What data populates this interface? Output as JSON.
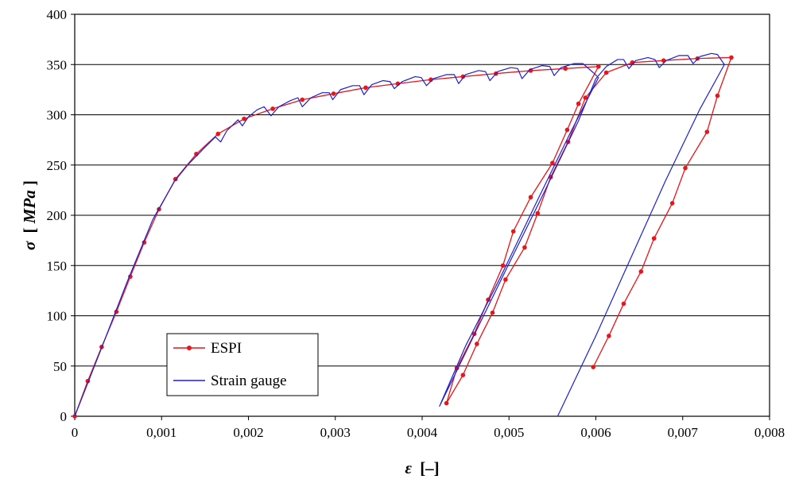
{
  "chart_data": {
    "type": "line",
    "xlabel_symbol": "ε",
    "xlabel_unit": "[–]",
    "ylabel_symbol": "σ",
    "ylabel_unit_open": "[",
    "ylabel_unit": "MPa",
    "ylabel_unit_close": "]",
    "xlim": [
      0,
      0.008
    ],
    "ylim": [
      0,
      400
    ],
    "x_ticks": [
      0,
      0.001,
      0.002,
      0.003,
      0.004,
      0.005,
      0.006,
      0.007,
      0.008
    ],
    "x_tick_labels": [
      "0",
      "0,001",
      "0,002",
      "0,003",
      "0,004",
      "0,005",
      "0,006",
      "0,007",
      "0,008"
    ],
    "y_ticks": [
      0,
      50,
      100,
      150,
      200,
      250,
      300,
      350,
      400
    ],
    "y_tick_labels": [
      "0",
      "50",
      "100",
      "150",
      "200",
      "250",
      "300",
      "350",
      "400"
    ],
    "grid": "horizontal",
    "legend_placement": "bottom-left",
    "series": [
      {
        "name": "ESPI",
        "color": "#e8151a",
        "marker": "dot",
        "points": [
          [
            0,
            0
          ],
          [
            0.00015,
            35
          ],
          [
            0.00031,
            69
          ],
          [
            0.00048,
            104
          ],
          [
            0.00064,
            139
          ],
          [
            0.0008,
            173
          ],
          [
            0.00097,
            206
          ],
          [
            0.00116,
            236
          ],
          [
            0.0014,
            261
          ],
          [
            0.00165,
            281
          ],
          [
            0.00195,
            296
          ],
          [
            0.00228,
            306
          ],
          [
            0.00262,
            315
          ],
          [
            0.00298,
            321
          ],
          [
            0.00335,
            327
          ],
          [
            0.00372,
            331
          ],
          [
            0.0041,
            335
          ],
          [
            0.00447,
            338
          ],
          [
            0.00485,
            341
          ],
          [
            0.00525,
            344
          ],
          [
            0.00565,
            346
          ],
          [
            0.00603,
            348
          ],
          [
            0.0058,
            311
          ],
          [
            0.00567,
            285
          ],
          [
            0.0055,
            252
          ],
          [
            0.00525,
            218
          ],
          [
            0.00505,
            184
          ],
          [
            0.00493,
            150
          ],
          [
            0.00476,
            116
          ],
          [
            0.0046,
            82
          ],
          [
            0.0044,
            48
          ],
          [
            0.00428,
            13
          ],
          [
            0.00447,
            41
          ],
          [
            0.00463,
            72
          ],
          [
            0.00481,
            103
          ],
          [
            0.00496,
            136
          ],
          [
            0.00518,
            168
          ],
          [
            0.00533,
            202
          ],
          [
            0.00548,
            238
          ],
          [
            0.00568,
            273
          ],
          [
            0.00588,
            317
          ],
          [
            0.00612,
            342
          ],
          [
            0.00642,
            352
          ],
          [
            0.00678,
            354
          ],
          [
            0.00717,
            356
          ],
          [
            0.00756,
            357
          ],
          [
            0.0074,
            319
          ],
          [
            0.00728,
            283
          ],
          [
            0.00703,
            247
          ],
          [
            0.00688,
            212
          ],
          [
            0.00667,
            177
          ],
          [
            0.00652,
            144
          ],
          [
            0.00632,
            112
          ],
          [
            0.00615,
            80
          ],
          [
            0.00597,
            49
          ]
        ]
      },
      {
        "name": "Strain gauge",
        "color": "#1d1fd2",
        "marker": "none",
        "points": [
          [
            0,
            0
          ],
          [
            0.0003,
            66
          ],
          [
            0.0006,
            133
          ],
          [
            0.0009,
            196
          ],
          [
            0.00115,
            234
          ],
          [
            0.0013,
            250
          ],
          [
            0.00148,
            266
          ],
          [
            0.00162,
            278
          ],
          [
            0.00168,
            273
          ],
          [
            0.00175,
            284
          ],
          [
            0.00188,
            295
          ],
          [
            0.00193,
            289
          ],
          [
            0.002,
            298
          ],
          [
            0.0021,
            305
          ],
          [
            0.00218,
            308
          ],
          [
            0.00226,
            299
          ],
          [
            0.00235,
            308
          ],
          [
            0.00248,
            314
          ],
          [
            0.00257,
            317
          ],
          [
            0.00262,
            308
          ],
          [
            0.00272,
            317
          ],
          [
            0.00285,
            322
          ],
          [
            0.00293,
            322
          ],
          [
            0.00297,
            315
          ],
          [
            0.00306,
            325
          ],
          [
            0.0032,
            329
          ],
          [
            0.00328,
            329
          ],
          [
            0.00333,
            320
          ],
          [
            0.00342,
            330
          ],
          [
            0.00355,
            334
          ],
          [
            0.00363,
            333
          ],
          [
            0.00368,
            326
          ],
          [
            0.00377,
            333
          ],
          [
            0.00392,
            338
          ],
          [
            0.00399,
            337
          ],
          [
            0.00405,
            329
          ],
          [
            0.00413,
            336
          ],
          [
            0.00428,
            340
          ],
          [
            0.00437,
            340
          ],
          [
            0.00442,
            331
          ],
          [
            0.0045,
            340
          ],
          [
            0.00465,
            344
          ],
          [
            0.00473,
            343
          ],
          [
            0.00478,
            334
          ],
          [
            0.00487,
            343
          ],
          [
            0.00502,
            347
          ],
          [
            0.0051,
            346
          ],
          [
            0.00515,
            336
          ],
          [
            0.00524,
            345
          ],
          [
            0.00538,
            349
          ],
          [
            0.00547,
            348
          ],
          [
            0.00552,
            339
          ],
          [
            0.0056,
            347
          ],
          [
            0.00575,
            351
          ],
          [
            0.00585,
            351
          ],
          [
            0.00597,
            342
          ],
          [
            0.00603,
            337
          ],
          [
            0.0057,
            281
          ],
          [
            0.0053,
            210
          ],
          [
            0.0049,
            138
          ],
          [
            0.0045,
            70
          ],
          [
            0.0042,
            10
          ],
          [
            0.0046,
            81
          ],
          [
            0.005,
            152
          ],
          [
            0.0054,
            222
          ],
          [
            0.0058,
            294
          ],
          [
            0.006,
            336
          ],
          [
            0.00612,
            348
          ],
          [
            0.00625,
            355
          ],
          [
            0.00632,
            355
          ],
          [
            0.00638,
            346
          ],
          [
            0.00646,
            354
          ],
          [
            0.0066,
            357
          ],
          [
            0.00668,
            355
          ],
          [
            0.00673,
            347
          ],
          [
            0.00681,
            354
          ],
          [
            0.00696,
            359
          ],
          [
            0.00706,
            359
          ],
          [
            0.00712,
            351
          ],
          [
            0.0072,
            358
          ],
          [
            0.00733,
            361
          ],
          [
            0.0074,
            360
          ],
          [
            0.00748,
            350
          ],
          [
            0.0072,
            306
          ],
          [
            0.0068,
            234
          ],
          [
            0.0064,
            157
          ],
          [
            0.006,
            80
          ],
          [
            0.00556,
            0
          ]
        ]
      }
    ]
  }
}
